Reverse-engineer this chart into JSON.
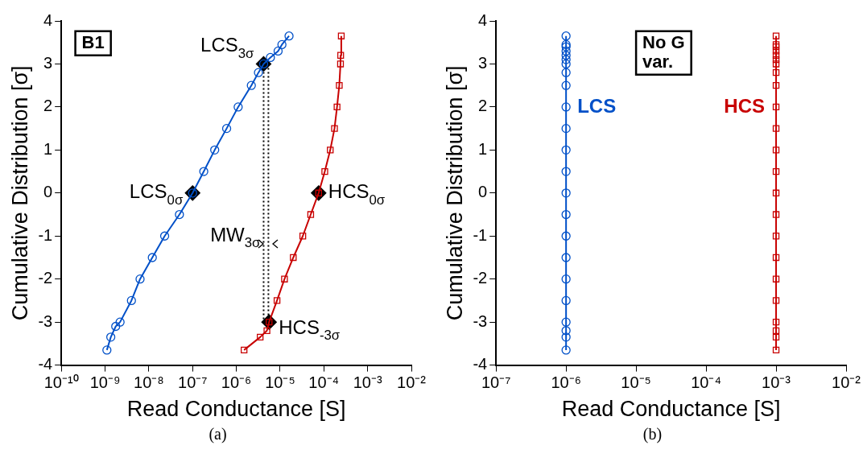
{
  "chart_data": [
    {
      "type": "line",
      "xlabel": "Read Conductance [S]",
      "ylabel": "Cumulative Distribution [σ]",
      "log": "x",
      "legend": false,
      "grid": false,
      "xlim": [
        1e-10,
        0.01
      ],
      "xticks": [
        {
          "value": 1e-10,
          "label": "10⁻¹⁰"
        },
        {
          "value": 1e-09,
          "label": "10⁻⁹"
        },
        {
          "value": 1e-08,
          "label": "10⁻⁸"
        },
        {
          "value": 1e-07,
          "label": "10⁻⁷"
        },
        {
          "value": 1e-06,
          "label": "10⁻⁶"
        },
        {
          "value": 1e-05,
          "label": "10⁻⁵"
        },
        {
          "value": 0.0001,
          "label": "10⁻⁴"
        },
        {
          "value": 0.001,
          "label": "10⁻³"
        },
        {
          "value": 0.01,
          "label": "10⁻²"
        }
      ],
      "ylim": [
        -4,
        4
      ],
      "yticks": [
        -4,
        -3,
        -2,
        -1,
        0,
        1,
        2,
        3,
        4
      ],
      "series": [
        {
          "color": "#0050c8",
          "marker": "circle",
          "x": [
            1.1e-09,
            1.35e-09,
            1.75e-09,
            2.2e-09,
            4e-09,
            6.3e-09,
            1.2e-08,
            2.3e-08,
            5e-08,
            1e-07,
            1.8e-07,
            3.2e-07,
            6e-07,
            1.1e-06,
            2.2e-06,
            3.2e-06,
            4.2e-06,
            6e-06,
            9e-06,
            1.1e-05,
            1.6e-05
          ],
          "values": [
            -3.65,
            -3.35,
            -3.1,
            -3,
            -2.5,
            -2,
            -1.5,
            -1,
            -0.5,
            0,
            0.5,
            1,
            1.5,
            2,
            2.5,
            2.8,
            3,
            3.15,
            3.3,
            3.45,
            3.65
          ]
        },
        {
          "color": "#c80000",
          "marker": "square",
          "x": [
            1.5e-06,
            3.5e-06,
            5e-06,
            5.6e-06,
            8.5e-06,
            1.26e-05,
            2e-05,
            3.3e-05,
            5e-05,
            7.6e-05,
            0.000105,
            0.00014,
            0.000175,
            0.0002,
            0.000225,
            0.00024,
            0.000242,
            0.00025
          ],
          "values": [
            -3.65,
            -3.35,
            -3.2,
            -3,
            -2.5,
            -2,
            -1.5,
            -1,
            -0.5,
            0,
            0.5,
            1,
            1.5,
            2,
            2.5,
            3,
            3.2,
            3.65
          ]
        },
        {
          "color": "#000000",
          "marker": "none",
          "line_style": "dotted",
          "x": [
            4.2e-06,
            4.2e-06
          ],
          "values": [
            3,
            -3
          ]
        },
        {
          "color": "#000000",
          "marker": "none",
          "line_style": "dotted",
          "x": [
            5.4e-06,
            5.4e-06
          ],
          "values": [
            3,
            -3
          ]
        },
        {
          "type": "scatter",
          "color": "#000000",
          "marker": "diamond",
          "x": [
            4.2e-06,
            1e-07,
            7.6e-05,
            5.6e-06
          ],
          "values": [
            3,
            0,
            0,
            -3
          ]
        }
      ],
      "annotations": [
        "B1",
        "(a)",
        {
          "text": "LCS$_{3σ}$",
          "x": 4.2e-06,
          "y": 3
        },
        {
          "text": "LCS$_{0σ}$",
          "x": 1e-07,
          "y": 0
        },
        {
          "text": "HCS$_{0σ}$",
          "x": 7.6e-05,
          "y": 0
        },
        {
          "text": "HCS$_{-3σ}$",
          "x": 5.6e-06,
          "y": -3
        },
        {
          "text": "MW$_{3σ}$",
          "x": 4.2e-06,
          "y": -1
        }
      ]
    },
    {
      "type": "line",
      "xlabel": "Read Conductance [S]",
      "ylabel": "Cumulative Distribution [σ]",
      "log": "x",
      "legend": false,
      "grid": false,
      "xlim": [
        1e-07,
        0.01
      ],
      "xticks": [
        {
          "value": 1e-07,
          "label": "10⁻⁷"
        },
        {
          "value": 1e-06,
          "label": "10⁻⁶"
        },
        {
          "value": 1e-05,
          "label": "10⁻⁵"
        },
        {
          "value": 0.0001,
          "label": "10⁻⁴"
        },
        {
          "value": 0.001,
          "label": "10⁻³"
        },
        {
          "value": 0.01,
          "label": "10⁻²"
        }
      ],
      "ylim": [
        -4,
        4
      ],
      "yticks": [
        -4,
        -3,
        -2,
        -1,
        0,
        1,
        2,
        3,
        4
      ],
      "series": [
        {
          "name": "LCS",
          "color": "#0050c8",
          "marker": "circle",
          "x": [
            1e-06,
            1e-06,
            1e-06,
            1e-06,
            1e-06,
            1e-06,
            1e-06,
            1e-06,
            1e-06,
            1e-06,
            1e-06,
            1e-06,
            1e-06,
            1e-06,
            1e-06,
            1e-06,
            1e-06,
            1e-06,
            1e-06,
            1e-06,
            1e-06,
            1e-06,
            1e-06
          ],
          "values": [
            -3.65,
            -3.35,
            -3.2,
            -3,
            -2.5,
            -2,
            -1.5,
            -1,
            -0.5,
            0,
            0.5,
            1,
            1.5,
            2,
            2.5,
            2.8,
            3,
            3.1,
            3.2,
            3.3,
            3.4,
            3.45,
            3.65
          ]
        },
        {
          "name": "HCS",
          "color": "#c80000",
          "marker": "square",
          "x": [
            0.001,
            0.001,
            0.001,
            0.001,
            0.001,
            0.001,
            0.001,
            0.001,
            0.001,
            0.001,
            0.001,
            0.001,
            0.001,
            0.001,
            0.001,
            0.001,
            0.001,
            0.001,
            0.001,
            0.001,
            0.001,
            0.001,
            0.001
          ],
          "values": [
            -3.65,
            -3.35,
            -3.2,
            -3,
            -2.5,
            -2,
            -1.5,
            -1,
            -0.5,
            0,
            0.5,
            1,
            1.5,
            2,
            2.5,
            2.8,
            3,
            3.1,
            3.2,
            3.3,
            3.4,
            3.45,
            3.65
          ]
        }
      ],
      "annotations": [
        "No G var.",
        "(b)"
      ]
    }
  ]
}
